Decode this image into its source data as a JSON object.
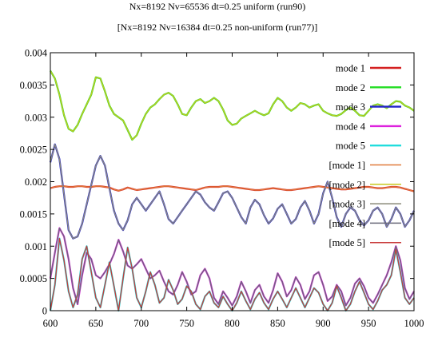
{
  "chart_data": {
    "type": "line",
    "title_line1": "Nx=8192 Nv=65536 dt=0.25 uniform (run90)",
    "title_line2": "[Nx=8192 Nv=16384 dt=0.25 non-uniform (run77)]",
    "xlim": [
      600,
      1000
    ],
    "ylim": [
      0,
      0.004
    ],
    "xticks": [
      "600",
      "650",
      "700",
      "750",
      "800",
      "850",
      "900",
      "950",
      "1000"
    ],
    "xtick_values": [
      600,
      650,
      700,
      750,
      800,
      850,
      900,
      950,
      1000
    ],
    "yticks": [
      "0",
      "0.0005",
      "0.001",
      "0.0015",
      "0.002",
      "0.0025",
      "0.003",
      "0.0035",
      "0.004"
    ],
    "ytick_values": [
      0,
      0.0005,
      0.001,
      0.0015,
      0.002,
      0.0025,
      0.003,
      0.0035,
      0.004
    ],
    "legend_position": "top-right",
    "x": [
      600,
      605,
      610,
      615,
      620,
      625,
      630,
      635,
      640,
      645,
      650,
      655,
      660,
      665,
      670,
      675,
      680,
      685,
      690,
      695,
      700,
      705,
      710,
      715,
      720,
      725,
      730,
      735,
      740,
      745,
      750,
      755,
      760,
      765,
      770,
      775,
      780,
      785,
      790,
      795,
      800,
      805,
      810,
      815,
      820,
      825,
      830,
      835,
      840,
      845,
      850,
      855,
      860,
      865,
      870,
      875,
      880,
      885,
      890,
      895,
      900,
      905,
      910,
      915,
      920,
      925,
      930,
      935,
      940,
      945,
      950,
      955,
      960,
      965,
      970,
      975,
      980,
      985,
      990,
      995,
      1000
    ],
    "series": [
      {
        "name": "mode 1",
        "color": "#d42020",
        "dashed": false,
        "values": [
          0.0019,
          0.00192,
          0.00193,
          0.00193,
          0.00192,
          0.00192,
          0.00193,
          0.00193,
          0.00192,
          0.00192,
          0.00193,
          0.00193,
          0.00192,
          0.00191,
          0.00188,
          0.00186,
          0.00188,
          0.00191,
          0.00189,
          0.00187,
          0.00188,
          0.00189,
          0.0019,
          0.00191,
          0.00192,
          0.00193,
          0.00193,
          0.00192,
          0.00191,
          0.0019,
          0.00189,
          0.00188,
          0.00187,
          0.00189,
          0.00191,
          0.00192,
          0.00192,
          0.00192,
          0.00193,
          0.00193,
          0.00192,
          0.00191,
          0.0019,
          0.00189,
          0.00188,
          0.00187,
          0.00187,
          0.00188,
          0.00189,
          0.0019,
          0.00189,
          0.00188,
          0.00187,
          0.00187,
          0.00188,
          0.00189,
          0.0019,
          0.00191,
          0.00192,
          0.00193,
          0.00192,
          0.00191,
          0.0019,
          0.00189,
          0.00188,
          0.00188,
          0.00189,
          0.0019,
          0.00191,
          0.00192,
          0.00192,
          0.00191,
          0.0019,
          0.0019,
          0.00191,
          0.00192,
          0.00192,
          0.00191,
          0.00189,
          0.00187,
          0.00185
        ]
      },
      {
        "name": "mode 2",
        "color": "#22dd22",
        "dashed": false,
        "values": [
          0.00372,
          0.0036,
          0.00335,
          0.00303,
          0.00282,
          0.00278,
          0.00288,
          0.00305,
          0.0032,
          0.00335,
          0.00362,
          0.0036,
          0.0034,
          0.00318,
          0.00305,
          0.003,
          0.00295,
          0.0028,
          0.00265,
          0.00272,
          0.0029,
          0.00305,
          0.00315,
          0.0032,
          0.00328,
          0.00335,
          0.00338,
          0.00333,
          0.0032,
          0.00305,
          0.00303,
          0.00315,
          0.00325,
          0.00328,
          0.00322,
          0.00325,
          0.0033,
          0.00325,
          0.00312,
          0.00295,
          0.00288,
          0.0029,
          0.00298,
          0.00302,
          0.00306,
          0.0031,
          0.00306,
          0.00303,
          0.00306,
          0.0032,
          0.0033,
          0.00325,
          0.00315,
          0.0031,
          0.00315,
          0.00322,
          0.0032,
          0.00315,
          0.00318,
          0.0032,
          0.0031,
          0.00306,
          0.00303,
          0.00302,
          0.00305,
          0.00311,
          0.00315,
          0.0031,
          0.00303,
          0.00302,
          0.0031,
          0.00318,
          0.0032,
          0.00318,
          0.00314,
          0.0032,
          0.00325,
          0.00324,
          0.00318,
          0.00315,
          0.0031
        ]
      },
      {
        "name": "mode 3",
        "color": "#2222cc",
        "dashed": false,
        "values": [
          0.0023,
          0.00258,
          0.00235,
          0.0018,
          0.00125,
          0.00112,
          0.00115,
          0.00135,
          0.00165,
          0.00195,
          0.00225,
          0.0024,
          0.00225,
          0.0019,
          0.00155,
          0.00135,
          0.00125,
          0.0014,
          0.00165,
          0.00175,
          0.00165,
          0.00155,
          0.00165,
          0.00175,
          0.00185,
          0.00165,
          0.00142,
          0.00135,
          0.00145,
          0.00155,
          0.00165,
          0.00175,
          0.00185,
          0.0018,
          0.00168,
          0.0016,
          0.00155,
          0.00168,
          0.00182,
          0.00185,
          0.00175,
          0.0016,
          0.00145,
          0.00135,
          0.0016,
          0.00172,
          0.00165,
          0.00148,
          0.00135,
          0.00143,
          0.00158,
          0.00165,
          0.0015,
          0.00135,
          0.00142,
          0.0016,
          0.0017,
          0.00155,
          0.00135,
          0.0015,
          0.00182,
          0.002,
          0.00175,
          0.00145,
          0.0013,
          0.0015,
          0.0016,
          0.00155,
          0.0014,
          0.00132,
          0.0014,
          0.00155,
          0.0016,
          0.0015,
          0.0013,
          0.00142,
          0.0016,
          0.0015,
          0.0013,
          0.0014,
          0.00155
        ]
      },
      {
        "name": "mode 4",
        "color": "#dd22dd",
        "dashed": false,
        "values": [
          0.0005,
          0.0009,
          0.00128,
          0.00115,
          0.0008,
          0.00035,
          0.0001,
          0.00055,
          0.0009,
          0.0008,
          0.00055,
          0.0005,
          0.0006,
          0.00072,
          0.00088,
          0.0011,
          0.00092,
          0.0007,
          0.00065,
          0.00072,
          0.0008,
          0.00065,
          0.0005,
          0.00055,
          0.00062,
          0.00045,
          0.0003,
          0.00025,
          0.0004,
          0.0006,
          0.00045,
          0.00025,
          0.0003,
          0.00055,
          0.00065,
          0.0005,
          0.0002,
          0.0001,
          0.0003,
          0.0002,
          8e-05,
          0.00022,
          0.00045,
          0.0003,
          0.00012,
          0.00032,
          0.0004,
          0.00022,
          0.00012,
          0.00032,
          0.00058,
          0.00045,
          0.00022,
          0.00032,
          0.00052,
          0.0004,
          0.00018,
          0.0003,
          0.00055,
          0.0006,
          0.0004,
          0.00015,
          0.00022,
          0.0004,
          0.0003,
          8e-05,
          0.0002,
          0.00042,
          0.0005,
          0.00038,
          0.0002,
          0.00012,
          0.00025,
          0.0004,
          0.00055,
          0.00075,
          0.001,
          0.00078,
          0.00035,
          0.00018,
          0.0003
        ]
      },
      {
        "name": "mode 5",
        "color": "#22dddd",
        "dashed": false,
        "values": [
          0.0,
          0.0004,
          0.00112,
          0.00078,
          0.0003,
          5e-05,
          0.00025,
          0.0008,
          0.001,
          0.0006,
          0.0002,
          5e-05,
          0.0004,
          0.00075,
          0.00038,
          0.0,
          0.0005,
          0.00098,
          0.00065,
          0.0002,
          5e-05,
          0.0003,
          0.0006,
          0.0004,
          0.00012,
          0.0002,
          0.00048,
          0.00032,
          0.0001,
          0.00018,
          0.00038,
          0.0003,
          0.0001,
          2e-05,
          0.00022,
          0.0003,
          0.00012,
          5e-05,
          0.00022,
          0.0001,
          0.0,
          0.00012,
          0.0003,
          0.00015,
          2e-05,
          0.00018,
          0.00028,
          0.00012,
          2e-05,
          0.00018,
          0.0003,
          0.00018,
          5e-05,
          0.0002,
          0.00035,
          0.0002,
          5e-05,
          0.0002,
          0.00035,
          0.00028,
          0.0001,
          0.0,
          0.00012,
          0.00038,
          0.0002,
          0.0,
          0.0001,
          0.0003,
          0.00045,
          0.00028,
          0.0001,
          2e-05,
          0.00015,
          0.00032,
          0.0004,
          0.00055,
          0.00095,
          0.0006,
          0.0002,
          0.0001,
          0.0002
        ]
      },
      {
        "name": "[mode 1]",
        "color": "#e07a3a",
        "dashed": false,
        "values": [
          0.0019,
          0.00192,
          0.00193,
          0.00193,
          0.00192,
          0.00192,
          0.00193,
          0.00193,
          0.00192,
          0.00192,
          0.00193,
          0.00193,
          0.00192,
          0.00191,
          0.00188,
          0.00186,
          0.00188,
          0.00191,
          0.00189,
          0.00187,
          0.00188,
          0.00189,
          0.0019,
          0.00191,
          0.00192,
          0.00193,
          0.00193,
          0.00192,
          0.00191,
          0.0019,
          0.00189,
          0.00188,
          0.00187,
          0.00189,
          0.00191,
          0.00192,
          0.00192,
          0.00192,
          0.00193,
          0.00193,
          0.00192,
          0.00191,
          0.0019,
          0.00189,
          0.00188,
          0.00187,
          0.00187,
          0.00188,
          0.00189,
          0.0019,
          0.00189,
          0.00188,
          0.00187,
          0.00187,
          0.00188,
          0.00189,
          0.0019,
          0.00191,
          0.00192,
          0.00193,
          0.00192,
          0.00191,
          0.0019,
          0.00189,
          0.00188,
          0.00188,
          0.00189,
          0.0019,
          0.00191,
          0.00192,
          0.00192,
          0.00191,
          0.0019,
          0.0019,
          0.00191,
          0.00192,
          0.00192,
          0.00191,
          0.00189,
          0.00187,
          0.00185
        ]
      },
      {
        "name": "[mode 2]",
        "color": "#c8c820",
        "dashed": false,
        "values": [
          0.00372,
          0.0036,
          0.00335,
          0.00303,
          0.00282,
          0.00278,
          0.00288,
          0.00305,
          0.0032,
          0.00335,
          0.00362,
          0.0036,
          0.0034,
          0.00318,
          0.00305,
          0.003,
          0.00295,
          0.0028,
          0.00265,
          0.00272,
          0.0029,
          0.00305,
          0.00315,
          0.0032,
          0.00328,
          0.00335,
          0.00338,
          0.00333,
          0.0032,
          0.00305,
          0.00303,
          0.00315,
          0.00325,
          0.00328,
          0.00322,
          0.00325,
          0.0033,
          0.00325,
          0.00312,
          0.00295,
          0.00288,
          0.0029,
          0.00298,
          0.00302,
          0.00306,
          0.0031,
          0.00306,
          0.00303,
          0.00306,
          0.0032,
          0.0033,
          0.00325,
          0.00315,
          0.0031,
          0.00315,
          0.00322,
          0.0032,
          0.00315,
          0.00318,
          0.0032,
          0.0031,
          0.00306,
          0.00303,
          0.00302,
          0.00305,
          0.00311,
          0.00315,
          0.0031,
          0.00303,
          0.00302,
          0.0031,
          0.00318,
          0.0032,
          0.00318,
          0.00314,
          0.0032,
          0.00325,
          0.00324,
          0.00318,
          0.00315,
          0.0031
        ]
      },
      {
        "name": "[mode 3]",
        "color": "#8a8a7a",
        "dashed": false,
        "values": [
          0.0023,
          0.00258,
          0.00235,
          0.0018,
          0.00125,
          0.00112,
          0.00115,
          0.00135,
          0.00165,
          0.00195,
          0.00225,
          0.0024,
          0.00225,
          0.0019,
          0.00155,
          0.00135,
          0.00125,
          0.0014,
          0.00165,
          0.00175,
          0.00165,
          0.00155,
          0.00165,
          0.00175,
          0.00185,
          0.00165,
          0.00142,
          0.00135,
          0.00145,
          0.00155,
          0.00165,
          0.00175,
          0.00185,
          0.0018,
          0.00168,
          0.0016,
          0.00155,
          0.00168,
          0.00182,
          0.00185,
          0.00175,
          0.0016,
          0.00145,
          0.00135,
          0.0016,
          0.00172,
          0.00165,
          0.00148,
          0.00135,
          0.00143,
          0.00158,
          0.00165,
          0.0015,
          0.00135,
          0.00142,
          0.0016,
          0.0017,
          0.00155,
          0.00135,
          0.0015,
          0.00182,
          0.002,
          0.00175,
          0.00145,
          0.0013,
          0.0015,
          0.0016,
          0.00155,
          0.0014,
          0.00132,
          0.0014,
          0.00155,
          0.0016,
          0.0015,
          0.0013,
          0.00142,
          0.0016,
          0.0015,
          0.0013,
          0.0014,
          0.00155
        ]
      },
      {
        "name": "[mode 4]",
        "color": "#6a6a7a",
        "dashed": false,
        "values": [
          0.0005,
          0.0009,
          0.00128,
          0.00115,
          0.0008,
          0.00035,
          0.0001,
          0.00055,
          0.0009,
          0.0008,
          0.00055,
          0.0005,
          0.0006,
          0.00072,
          0.00088,
          0.0011,
          0.00092,
          0.0007,
          0.00065,
          0.00072,
          0.0008,
          0.00065,
          0.0005,
          0.00055,
          0.00062,
          0.00045,
          0.0003,
          0.00025,
          0.0004,
          0.0006,
          0.00045,
          0.00025,
          0.0003,
          0.00055,
          0.00065,
          0.0005,
          0.0002,
          0.0001,
          0.0003,
          0.0002,
          8e-05,
          0.00022,
          0.00045,
          0.0003,
          0.00012,
          0.00032,
          0.0004,
          0.00022,
          0.00012,
          0.00032,
          0.00058,
          0.00045,
          0.00022,
          0.00032,
          0.00052,
          0.0004,
          0.00018,
          0.0003,
          0.00055,
          0.0006,
          0.0004,
          0.00015,
          0.00022,
          0.0004,
          0.0003,
          8e-05,
          0.0002,
          0.00042,
          0.0005,
          0.00038,
          0.0002,
          0.00012,
          0.00025,
          0.0004,
          0.00055,
          0.00075,
          0.001,
          0.00078,
          0.00035,
          0.00018,
          0.0003
        ]
      },
      {
        "name": "[mode 5]",
        "color": "#c83a3a",
        "dashed": false,
        "values": [
          0.0,
          0.0004,
          0.00112,
          0.00078,
          0.0003,
          5e-05,
          0.00025,
          0.0008,
          0.001,
          0.0006,
          0.0002,
          5e-05,
          0.0004,
          0.00075,
          0.00038,
          0.0,
          0.0005,
          0.00098,
          0.00065,
          0.0002,
          5e-05,
          0.0003,
          0.0006,
          0.0004,
          0.00012,
          0.0002,
          0.00048,
          0.00032,
          0.0001,
          0.00018,
          0.00038,
          0.0003,
          0.0001,
          2e-05,
          0.00022,
          0.0003,
          0.00012,
          5e-05,
          0.00022,
          0.0001,
          0.0,
          0.00012,
          0.0003,
          0.00015,
          2e-05,
          0.00018,
          0.00028,
          0.00012,
          2e-05,
          0.00018,
          0.0003,
          0.00018,
          5e-05,
          0.0002,
          0.00035,
          0.0002,
          5e-05,
          0.0002,
          0.00035,
          0.00028,
          0.0001,
          0.0,
          0.00012,
          0.00038,
          0.0002,
          0.0,
          0.0001,
          0.0003,
          0.00045,
          0.00028,
          0.0001,
          2e-05,
          0.00015,
          0.00032,
          0.0004,
          0.00055,
          0.00095,
          0.0006,
          0.0002,
          0.0001,
          0.0002
        ]
      }
    ]
  }
}
